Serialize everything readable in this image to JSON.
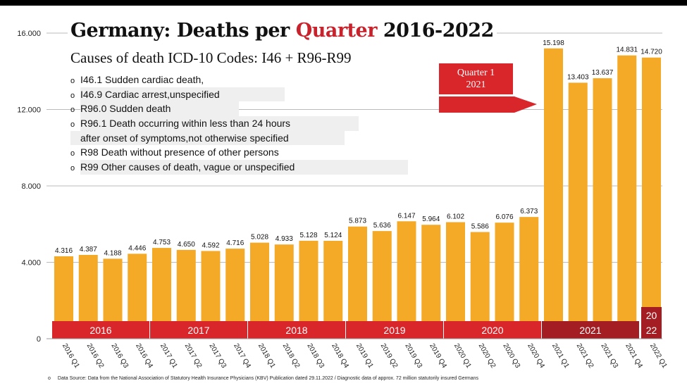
{
  "chart_data": {
    "type": "bar",
    "title_parts": [
      "Germany: Deaths per ",
      "Quarter",
      " 2016-2022"
    ],
    "subtitle": "Causes of death ICD-10 Codes: I46 + R96-R99",
    "codes": [
      "I46.1 Sudden cardiac death,",
      "I46.9 Cardiac arrest,unspecified",
      "R96.0 Sudden death",
      "R96.1 Death occurring within less than 24 hours",
      "after onset of symptoms,not otherwise specified",
      "R98 Death without presence of other persons",
      "R99 Other causes of death, vague or unspecified"
    ],
    "categories": [
      "2016 Q1",
      "2016 Q2",
      "2016 Q3",
      "2016 Q4",
      "2017 Q1",
      "2017 Q2",
      "2017 Q3",
      "2017 Q4",
      "2018 Q1",
      "2018 Q2",
      "2018 Q3",
      "2018 Q4",
      "2019 Q1",
      "2019 Q2",
      "2019 Q3",
      "2019 Q4",
      "2020 Q1",
      "2020 Q2",
      "2020 Q3",
      "2020 Q4",
      "2021 Q1",
      "2021 Q2",
      "2021 Q3",
      "2021 Q4",
      "2022 Q1"
    ],
    "values": [
      4316,
      4387,
      4188,
      4446,
      4753,
      4650,
      4592,
      4716,
      5028,
      4933,
      5128,
      5124,
      5873,
      5636,
      6147,
      5964,
      6102,
      5586,
      6076,
      6373,
      15198,
      13403,
      13637,
      14831,
      14720
    ],
    "value_labels": [
      "4.316",
      "4.387",
      "4.188",
      "4.446",
      "4.753",
      "4.650",
      "4.592",
      "4.716",
      "5.028",
      "4.933",
      "5.128",
      "5.124",
      "5.873",
      "5.636",
      "6.147",
      "5.964",
      "6.102",
      "5.586",
      "6.076",
      "6.373",
      "15.198",
      "13.403",
      "13.637",
      "14.831",
      "14.720"
    ],
    "yticks": [
      0,
      4000,
      8000,
      12000,
      16000
    ],
    "ytick_labels": [
      "0",
      "4.000",
      "8.000",
      "12.000",
      "16.000"
    ],
    "ylim": [
      0,
      16000
    ],
    "grid": true,
    "year_groups": [
      {
        "label": "2016",
        "start": 0,
        "count": 4
      },
      {
        "label": "2017",
        "start": 4,
        "count": 4
      },
      {
        "label": "2018",
        "start": 8,
        "count": 4
      },
      {
        "label": "2019",
        "start": 12,
        "count": 4
      },
      {
        "label": "2020",
        "start": 16,
        "count": 4
      },
      {
        "label": "2021",
        "start": 20,
        "count": 4,
        "highlight": true
      }
    ],
    "last_year_label": [
      "20",
      "22"
    ],
    "callout": [
      "Quarter 1",
      "2021"
    ],
    "source": "Data Source: Data from the National Association of Statutory Health Insurance Physicians (KBV) Publication dated 29.11.2022 / Diagnostic data of approx. 72 million statutorily insured Germans",
    "colors": {
      "bar": "#f4a927",
      "band": "#d9262b",
      "band_highlight": "#a31d22",
      "accent": "#c8232c"
    }
  }
}
